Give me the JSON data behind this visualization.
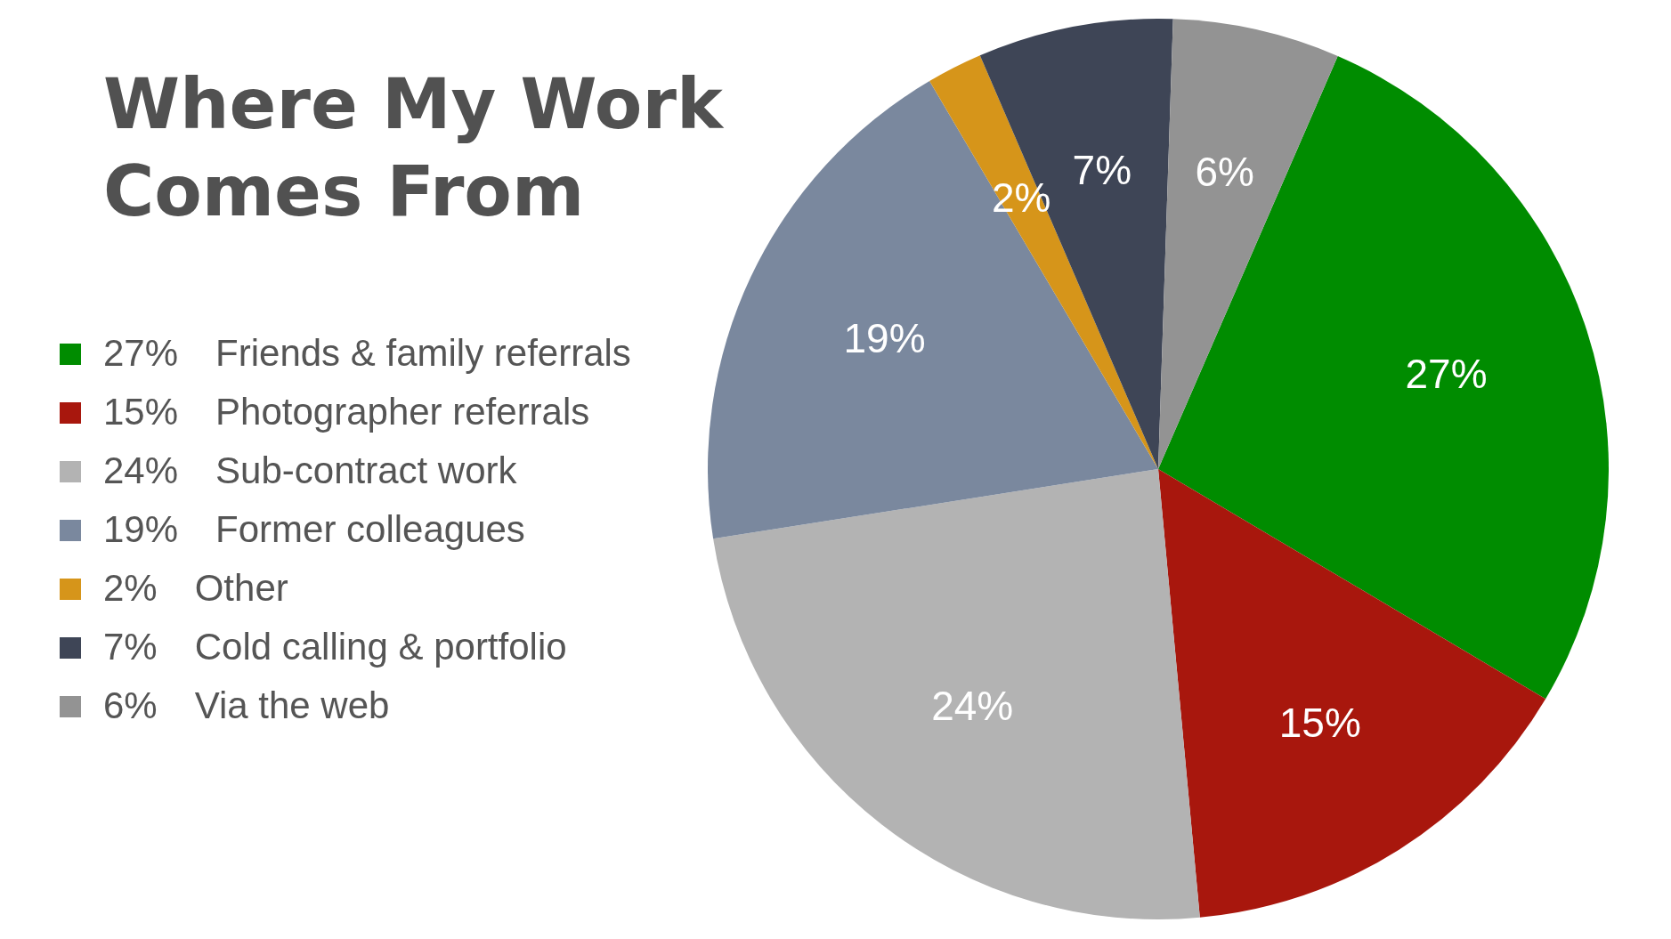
{
  "chart_data": {
    "type": "pie",
    "title": "Where My Work Comes From",
    "categories": [
      "Friends & family referrals",
      "Photographer referrals",
      "Sub-contract work",
      "Former colleagues",
      "Other",
      "Cold calling & portfolio",
      "Via the web"
    ],
    "values": [
      27,
      15,
      24,
      19,
      2,
      7,
      6
    ],
    "value_labels": [
      "27%",
      "15%",
      "24%",
      "19%",
      "2%",
      "7%",
      "6%"
    ],
    "colors": [
      "#008c00",
      "#a8170d",
      "#b3b3b3",
      "#7a889e",
      "#d6951a",
      "#3e4556",
      "#939393"
    ],
    "legend": "left"
  }
}
